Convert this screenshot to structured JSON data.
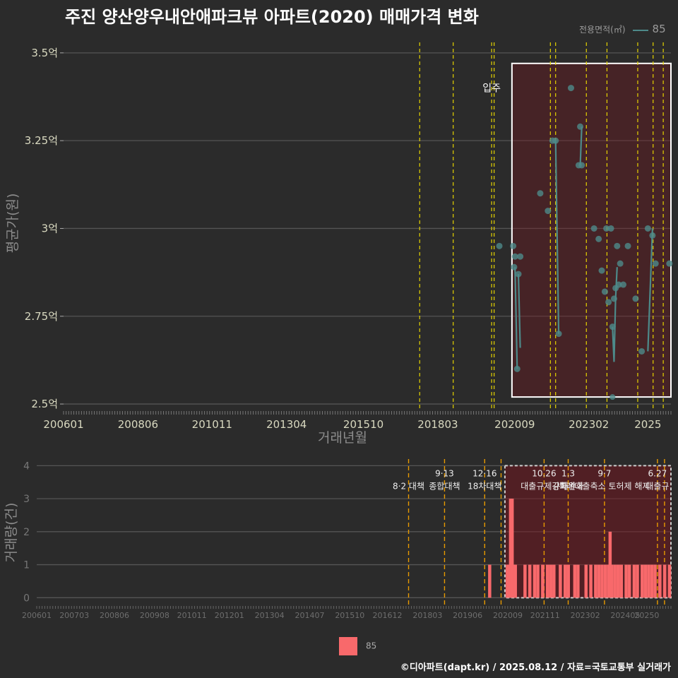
{
  "title": "주진 양산양우내안애파크뷰 아파트(2020) 매매가격 변화",
  "legend_top": {
    "label": "전용면적(㎡)",
    "value": "85",
    "color": "#4d8a8a"
  },
  "legend_bottom": {
    "label": "85",
    "color": "#f8696b"
  },
  "footer": "©디아파트(dapt.kr) / 2025.08.12 / 자료=국토교통부 실거래가",
  "chart_data": [
    {
      "type": "line",
      "title": "주진 양산양우내안애파크뷰 아파트(2020) 매매가격 변화",
      "xlabel": "거래년월",
      "ylabel": "평균가(원)",
      "x_range": [
        2006.0,
        2025.75
      ],
      "ylim": [
        2.48,
        3.55
      ],
      "y_ticks": [
        2.5,
        2.75,
        3.0,
        3.25,
        3.5
      ],
      "y_tick_labels": [
        "2.5억",
        "2.75억",
        "3억",
        "3.25억",
        "3.5억"
      ],
      "x_ticks": [
        2006.0,
        2008.42,
        2010.83,
        2013.25,
        2015.75,
        2018.17,
        2020.67,
        2023.08,
        2025.0
      ],
      "x_tick_labels": [
        "200601",
        "200806",
        "201011",
        "201304",
        "201510",
        "201803",
        "202009",
        "202302",
        "2025"
      ],
      "vlines": [
        2017.58,
        2018.67,
        2019.92,
        2020.0,
        2021.83,
        2022.0,
        2023.0,
        2023.67,
        2024.67,
        2025.17,
        2025.5
      ],
      "annotation": {
        "x": 2019.92,
        "y": 3.4,
        "text": "입주"
      },
      "highlight": {
        "x": [
          2020.58,
          2025.75
        ],
        "y": [
          2.52,
          3.47
        ]
      },
      "series": [
        {
          "name": "85",
          "color": "#4d8a8a",
          "x": [
            2020.17,
            2020.62,
            2020.65,
            2020.68,
            2020.75,
            2020.79,
            2020.85,
            2021.5,
            2021.75,
            2021.9,
            2022.0,
            2022.1,
            2022.5,
            2022.75,
            2022.8,
            2022.85,
            2023.25,
            2023.4,
            2023.5,
            2023.6,
            2023.65,
            2023.72,
            2023.8,
            2023.85,
            2023.9,
            2023.95,
            2024.0,
            2024.05,
            2024.1,
            2024.2,
            2024.35,
            2024.6,
            2024.8,
            2025.0,
            2025.15,
            2025.25,
            2025.7
          ],
          "y": [
            2.95,
            2.95,
            2.89,
            2.92,
            2.6,
            2.87,
            2.92,
            3.1,
            3.05,
            3.25,
            3.25,
            2.7,
            3.4,
            3.18,
            3.29,
            3.18,
            3.0,
            2.97,
            2.88,
            2.82,
            3.0,
            2.79,
            3.0,
            2.72,
            2.8,
            2.83,
            2.95,
            2.84,
            2.9,
            2.84,
            2.95,
            2.8,
            2.65,
            3.0,
            2.98,
            2.9,
            2.9
          ],
          "line_segments": [
            [
              [
                2020.68,
                2.89
              ],
              [
                2020.75,
                2.6
              ]
            ],
            [
              [
                2020.79,
                2.87
              ],
              [
                2020.85,
                2.66
              ]
            ],
            [
              [
                2022.0,
                3.25
              ],
              [
                2022.1,
                2.7
              ]
            ],
            [
              [
                2022.8,
                3.18
              ],
              [
                2022.85,
                3.29
              ]
            ],
            [
              [
                2023.85,
                2.72
              ],
              [
                2023.9,
                2.62
              ],
              [
                2023.95,
                2.8
              ],
              [
                2024.0,
                2.89
              ]
            ],
            [
              [
                2025.0,
                2.65
              ],
              [
                2025.15,
                3.0
              ]
            ]
          ]
        }
      ],
      "extra_points": [
        {
          "x": 2023.85,
          "y": 2.52
        }
      ]
    },
    {
      "type": "bar",
      "xlabel": "",
      "ylabel": "거래량(건)",
      "x_range": [
        2006.0,
        2025.75
      ],
      "ylim": [
        -0.25,
        4.2
      ],
      "y_ticks": [
        0,
        1,
        2,
        3,
        4
      ],
      "y_tick_labels": [
        "0",
        "1",
        "2",
        "3",
        "4"
      ],
      "x_ticks": [
        2006.0,
        2007.17,
        2008.42,
        2009.67,
        2010.83,
        2012.0,
        2013.25,
        2014.5,
        2015.75,
        2016.92,
        2018.17,
        2019.42,
        2020.67,
        2021.83,
        2023.08,
        2024.33,
        2025.0
      ],
      "x_tick_labels": [
        "200601",
        "200703",
        "200806",
        "200908",
        "201011",
        "201201",
        "201304",
        "201407",
        "201510",
        "201612",
        "201803",
        "201906",
        "202009",
        "202111",
        "202302",
        "202405",
        "20250"
      ],
      "vlines": [
        2017.58,
        2018.7,
        2019.95,
        2020.46,
        2021.8,
        2022.55,
        2023.68,
        2025.33,
        2025.55
      ],
      "policy_labels": [
        {
          "x": 2017.58,
          "date": "",
          "text": "8·2 대책"
        },
        {
          "x": 2018.7,
          "date": "9·13",
          "text": "종합대책"
        },
        {
          "x": 2019.95,
          "date": "12·16",
          "text": "18차대책"
        },
        {
          "x": 2021.8,
          "date": "10.26",
          "text": "대출규제강화"
        },
        {
          "x": 2022.55,
          "date": "1.3",
          "text": "규제완화"
        },
        {
          "x": 2023.68,
          "date": "9·7",
          "text": "특례대출축소 토허제 해제"
        },
        {
          "x": 2025.33,
          "date": "6.27",
          "text": "대출규"
        }
      ],
      "highlight": {
        "x": [
          2020.58,
          2025.75
        ],
        "y": [
          0,
          4
        ]
      },
      "bars_x": [
        2020.1,
        2020.65,
        2020.7,
        2020.75,
        2020.8,
        2020.85,
        2020.9,
        2021.2,
        2021.35,
        2021.5,
        2021.6,
        2021.75,
        2021.9,
        2022.0,
        2022.1,
        2022.3,
        2022.45,
        2022.55,
        2022.75,
        2022.85,
        2023.1,
        2023.25,
        2023.4,
        2023.5,
        2023.6,
        2023.7,
        2023.8,
        2023.85,
        2023.9,
        2024.0,
        2024.1,
        2024.2,
        2024.35,
        2024.45,
        2024.6,
        2024.7,
        2024.85,
        2024.95,
        2025.05,
        2025.15,
        2025.25,
        2025.4,
        2025.55,
        2025.7
      ],
      "bars_y": [
        1,
        1,
        1,
        3,
        3,
        1,
        1,
        1,
        1,
        1,
        1,
        1,
        1,
        1,
        1,
        1,
        1,
        1,
        1,
        1,
        1,
        1,
        1,
        1,
        1,
        1,
        1,
        2,
        1,
        1,
        1,
        1,
        1,
        1,
        1,
        1,
        1,
        1,
        1,
        1,
        1,
        1,
        1,
        1
      ]
    }
  ]
}
